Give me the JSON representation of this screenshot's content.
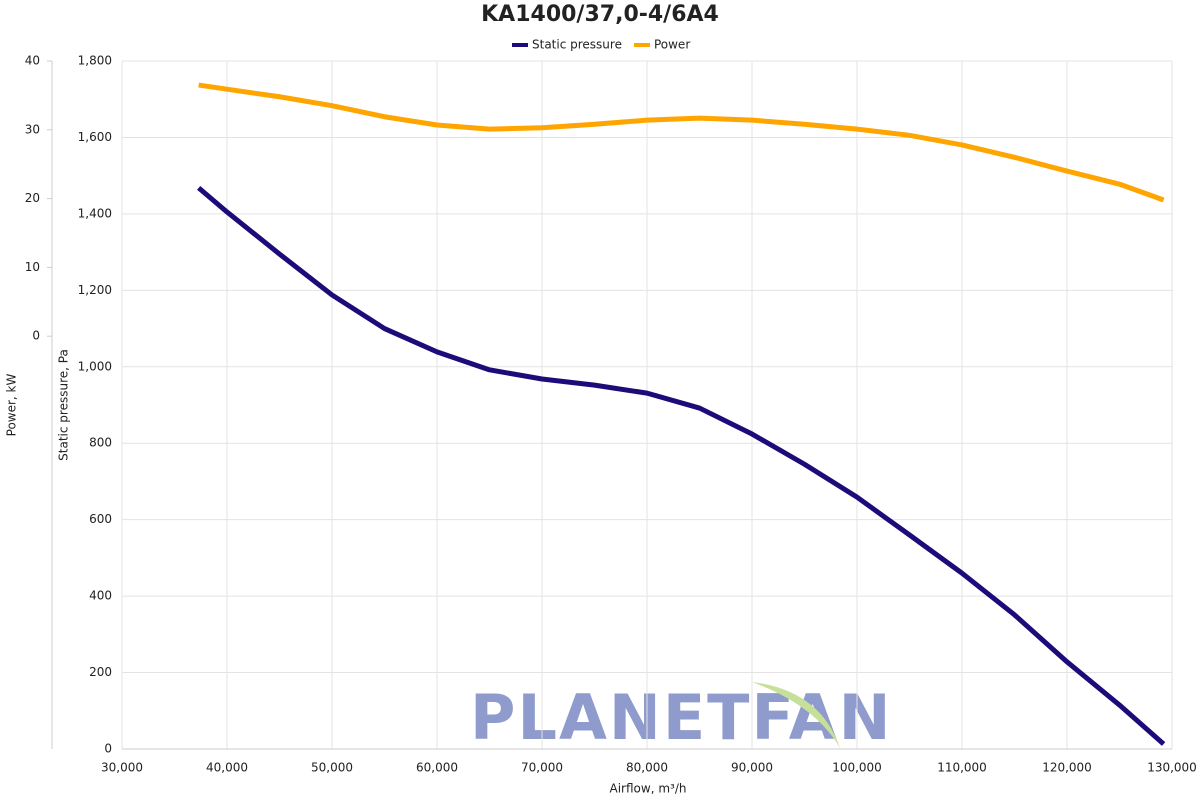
{
  "chart_data": {
    "type": "line",
    "title": "KA1400/37,0-4/6A4",
    "x_label": "Airflow, m³/h",
    "y_label": "Static pressure, Pa",
    "y2_label": "Power, kW",
    "watermark": "PLANETFAN",
    "x": [
      37300,
      40000,
      45000,
      50000,
      55000,
      60000,
      65000,
      70000,
      75000,
      80000,
      85000,
      90000,
      95000,
      100000,
      105000,
      110000,
      115000,
      120000,
      125000,
      129200
    ],
    "series": [
      {
        "name": "Static pressure",
        "color": "#1f0a7a",
        "values": [
          1468,
          1405,
          1295,
          1188,
          1100,
          1039,
          992,
          968,
          952,
          931,
          892,
          824,
          745,
          659,
          560,
          460,
          351,
          228,
          115,
          13
        ]
      },
      {
        "name": "Power",
        "color": "#ffa500",
        "axis": "y2",
        "values": [
          36.5,
          35.9,
          34.8,
          33.5,
          31.9,
          30.7,
          30.1,
          30.3,
          30.8,
          31.4,
          31.7,
          31.4,
          30.8,
          30.1,
          29.2,
          27.8,
          26.0,
          24.0,
          22.1,
          19.8
        ]
      }
    ],
    "xlim": [
      30000,
      130000
    ],
    "xticks": [
      {
        "value": 30000,
        "label": "30,000"
      },
      {
        "value": 40000,
        "label": "40,000"
      },
      {
        "value": 50000,
        "label": "50,000"
      },
      {
        "value": 60000,
        "label": "60,000"
      },
      {
        "value": 70000,
        "label": "70,000"
      },
      {
        "value": 80000,
        "label": "80,000"
      },
      {
        "value": 90000,
        "label": "90,000"
      },
      {
        "value": 100000,
        "label": "100,000"
      },
      {
        "value": 110000,
        "label": "110,000"
      },
      {
        "value": 120000,
        "label": "120,000"
      },
      {
        "value": 130000,
        "label": "130,000"
      }
    ],
    "ylim": [
      0,
      1800
    ],
    "yticks": [
      0,
      200,
      400,
      600,
      800,
      {
        "value": 1000,
        "label": "1,000"
      },
      {
        "value": 1200,
        "label": "1,200"
      },
      {
        "value": 1400,
        "label": "1,400"
      },
      {
        "value": 1600,
        "label": "1,600"
      },
      {
        "value": 1800,
        "label": "1,800"
      }
    ],
    "y2lim": [
      -60,
      40
    ],
    "y2ticks": [
      0,
      10,
      20,
      30,
      40
    ],
    "grid": true,
    "legend": "top"
  }
}
